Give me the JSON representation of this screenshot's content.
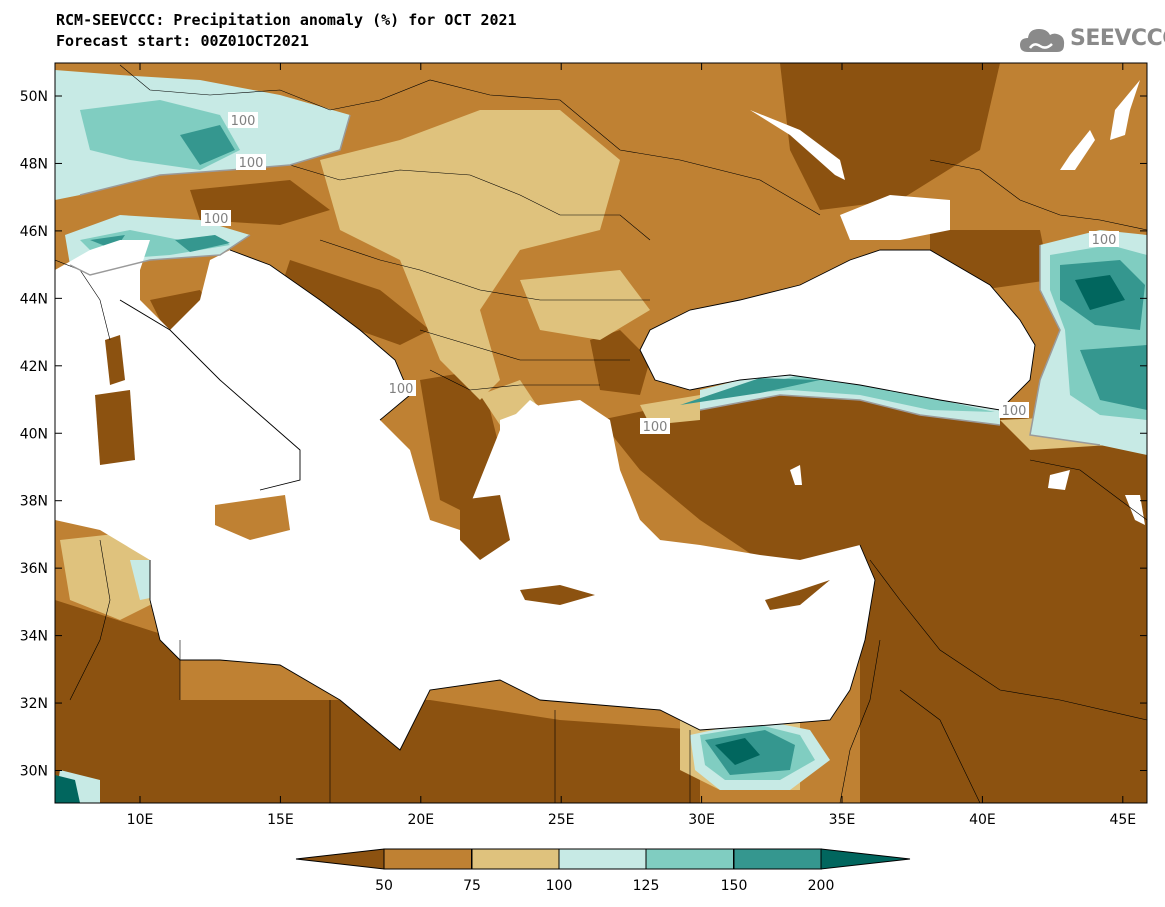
{
  "header": {
    "title_line1": "RCM-SEEVCCC: Precipitation anomaly (%) for OCT 2021",
    "title_line2": "Forecast start: 00Z01OCT2021",
    "logo_text": "SEEVCCC"
  },
  "map": {
    "lat_labels": [
      "50N",
      "48N",
      "46N",
      "44N",
      "42N",
      "40N",
      "38N",
      "36N",
      "34N",
      "32N",
      "30N"
    ],
    "lon_labels": [
      "10E",
      "15E",
      "20E",
      "25E",
      "30E",
      "35E",
      "40E",
      "45E"
    ],
    "contour_labels": [
      "100",
      "100",
      "100",
      "100",
      "100",
      "100",
      "100"
    ],
    "palette": {
      "lt50": "#8c5210",
      "50_75": "#bf8133",
      "75_100": "#dfc27d",
      "100_125": "#c7eae5",
      "125_150": "#80cdc1",
      "150_200": "#35978f",
      "gt200": "#01665e",
      "sea": "#ffffff"
    }
  },
  "legend": {
    "ticks": [
      "50",
      "75",
      "100",
      "125",
      "150",
      "200"
    ],
    "colors": [
      "#8c5210",
      "#bf8133",
      "#dfc27d",
      "#c7eae5",
      "#80cdc1",
      "#35978f",
      "#01665e"
    ]
  }
}
